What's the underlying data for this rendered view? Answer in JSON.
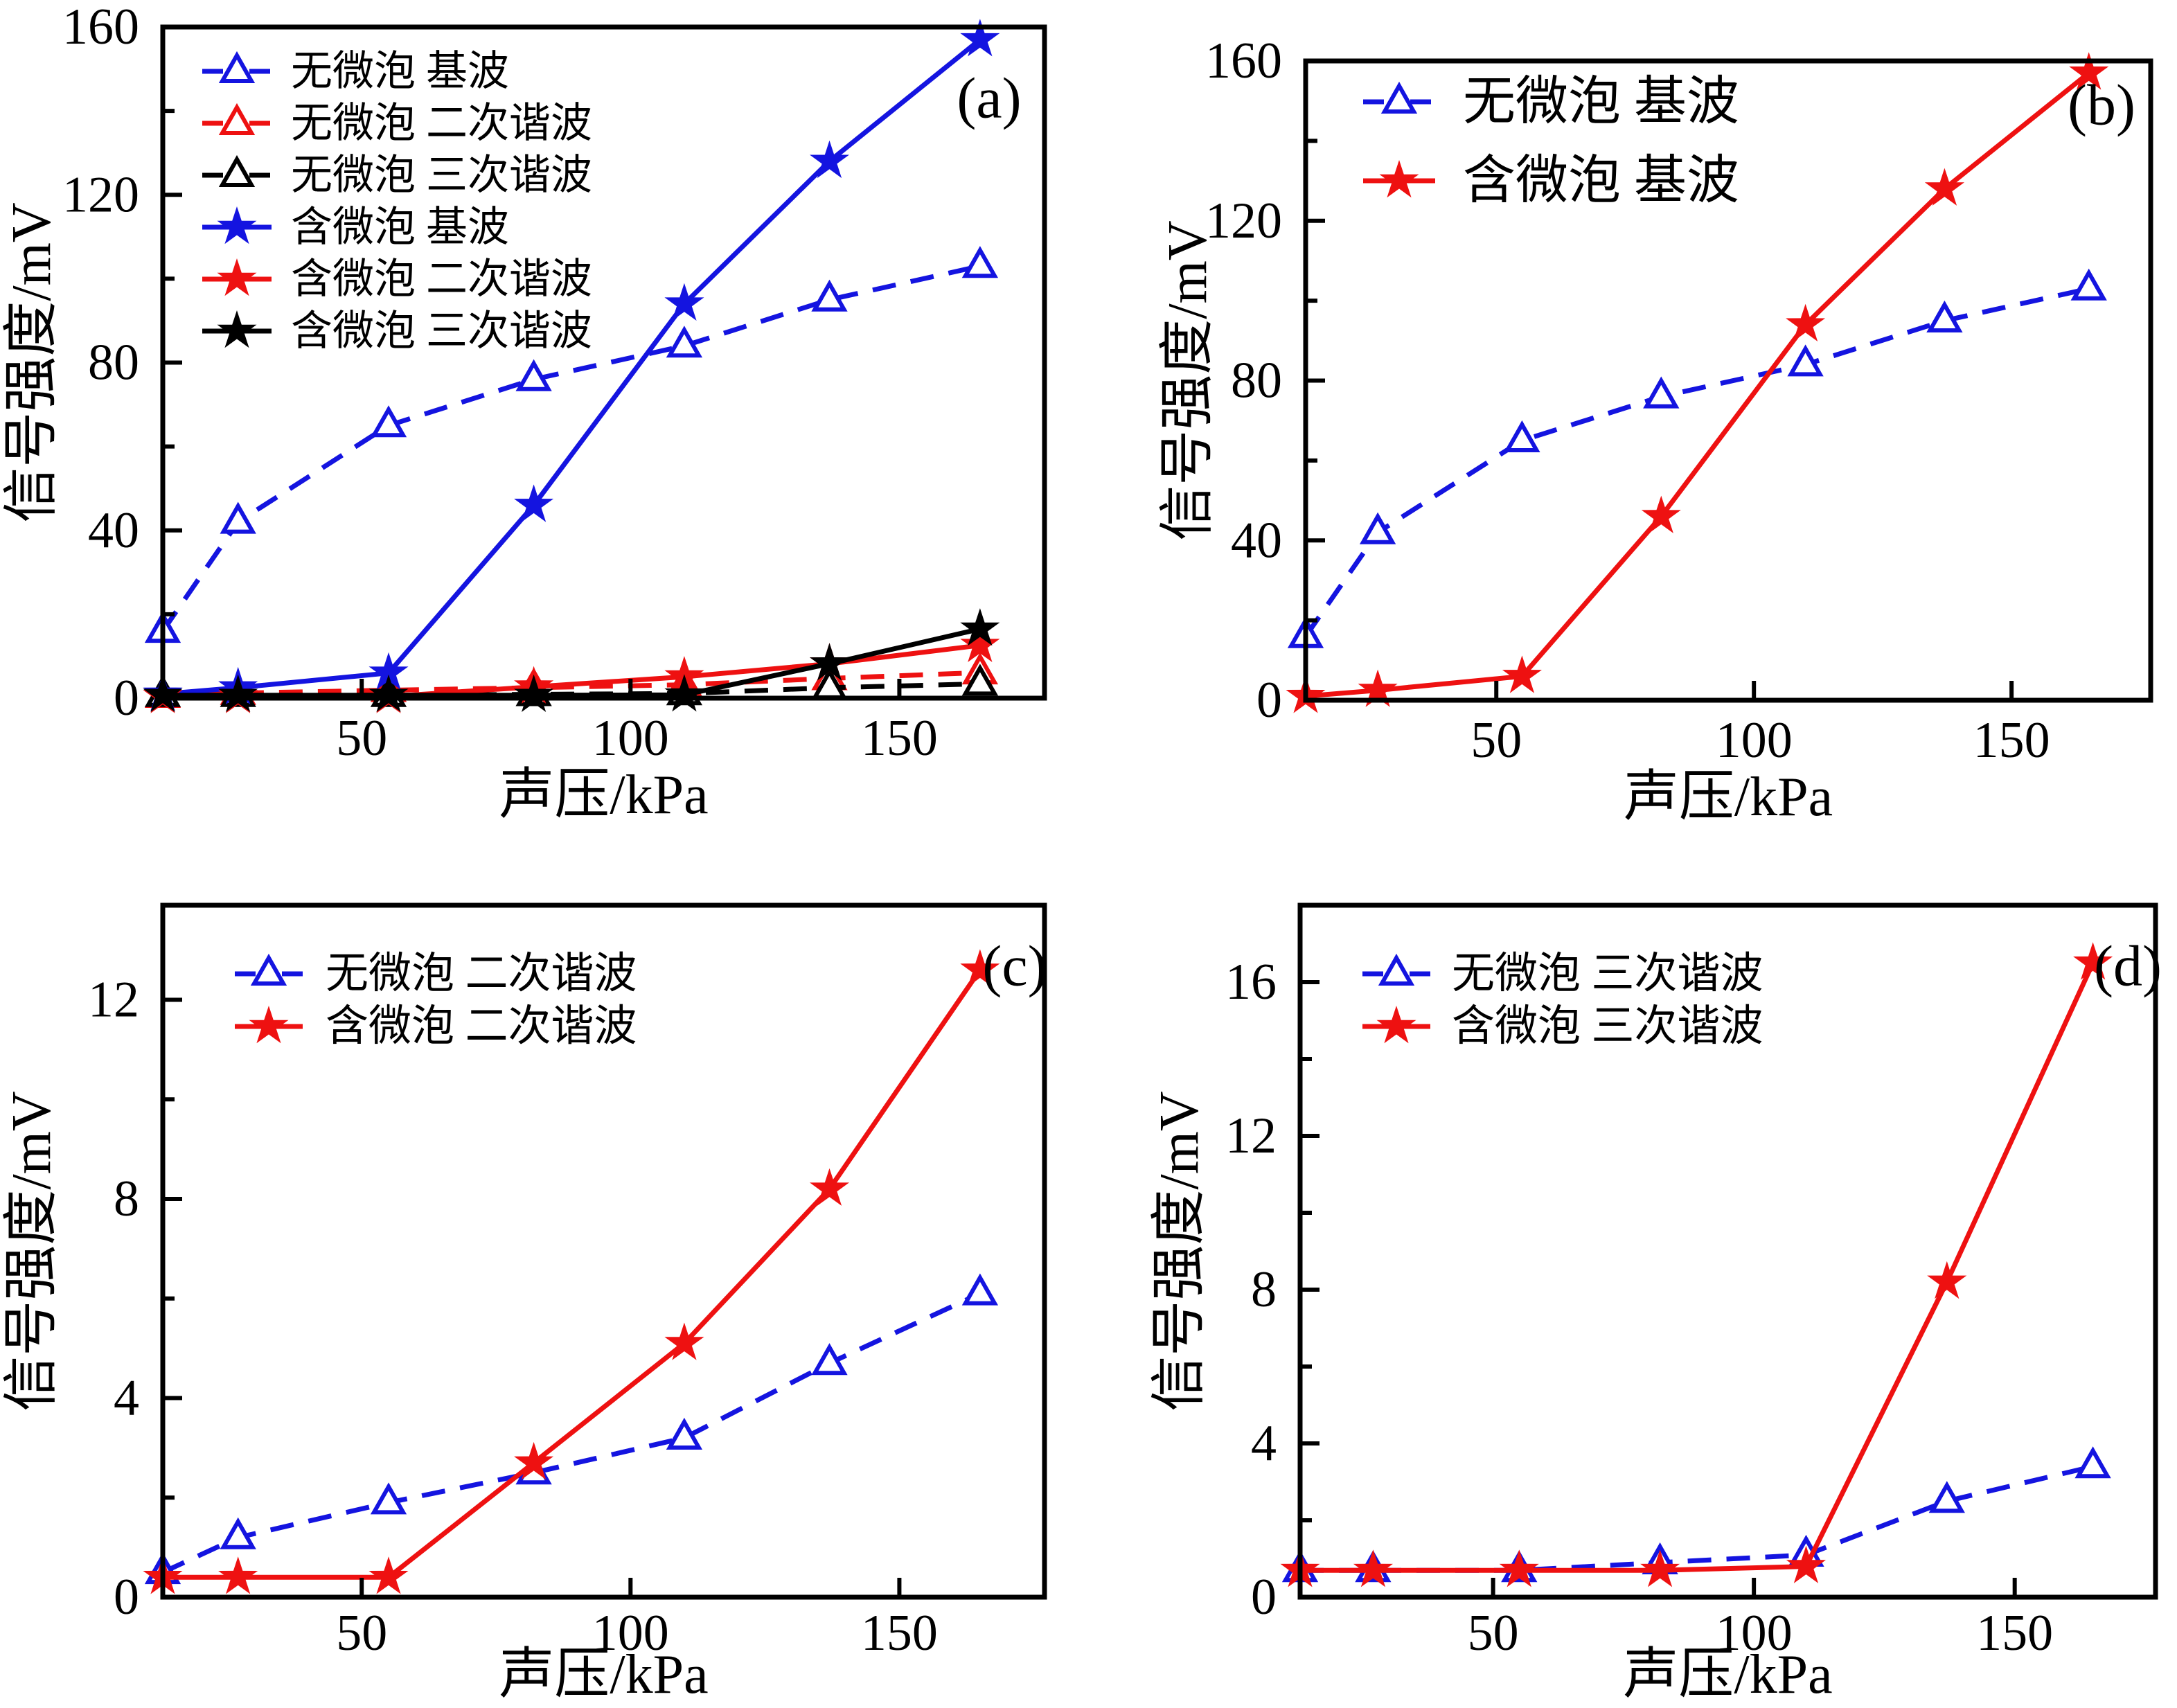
{
  "figure": {
    "background": "#ffffff",
    "description_colors": {
      "blue": "#1414E0",
      "red": "#EE1111",
      "black": "#000000"
    }
  },
  "chart_data": [
    {
      "id": "a",
      "type": "line",
      "panel_label": "(a)",
      "xlabel": "声压/kPa",
      "ylabel": "信号强度/mV",
      "x": [
        13,
        27,
        55,
        82,
        110,
        137,
        165
      ],
      "xlim": [
        13,
        177
      ],
      "xticks": [
        50,
        100,
        150
      ],
      "ylim": [
        0,
        160
      ],
      "yticks": [
        0,
        40,
        80,
        120,
        160
      ],
      "yticks_minor": [
        20,
        60,
        100,
        140
      ],
      "grid": false,
      "legend_position": "upper-left-inside",
      "series": [
        {
          "name": "无微泡 基波",
          "color": "#1414E0",
          "dash": true,
          "marker": "triangle-open",
          "values": [
            16,
            42,
            65,
            76,
            84,
            95,
            103
          ]
        },
        {
          "name": "无微泡 二次谐波",
          "color": "#EE1111",
          "dash": true,
          "marker": "triangle-open",
          "values": [
            0.5,
            1.2,
            1.9,
            2.5,
            3.2,
            4.7,
            6.1
          ]
        },
        {
          "name": "无微泡 三次谐波",
          "color": "#000000",
          "dash": true,
          "marker": "triangle-open",
          "values": [
            0.7,
            0.7,
            0.7,
            0.9,
            1.1,
            2.5,
            3.4
          ]
        },
        {
          "name": "含微泡 基波",
          "color": "#1414E0",
          "dash": false,
          "marker": "star-filled",
          "values": [
            1,
            2.5,
            6,
            46,
            94,
            128,
            157
          ]
        },
        {
          "name": "含微泡 二次谐波",
          "color": "#EE1111",
          "dash": false,
          "marker": "star-filled",
          "values": [
            0.4,
            0.4,
            0.4,
            2.7,
            5.1,
            8.2,
            12.6
          ]
        },
        {
          "name": "含微泡 三次谐波",
          "color": "#000000",
          "dash": false,
          "marker": "star-filled",
          "values": [
            0.7,
            0.7,
            0.7,
            0.7,
            0.8,
            8.2,
            16.5
          ]
        }
      ]
    },
    {
      "id": "b",
      "type": "line",
      "panel_label": "(b)",
      "xlabel": "声压/kPa",
      "ylabel": "信号强度/mV",
      "x": [
        13,
        27,
        55,
        82,
        110,
        137,
        165
      ],
      "xlim": [
        13,
        177
      ],
      "xticks": [
        50,
        100,
        150
      ],
      "ylim": [
        0,
        160
      ],
      "yticks": [
        0,
        40,
        80,
        120,
        160
      ],
      "yticks_minor": [
        20,
        60,
        100,
        140
      ],
      "grid": false,
      "legend_position": "upper-left-inside",
      "series": [
        {
          "name": "无微泡 基波",
          "color": "#1414E0",
          "dash": true,
          "marker": "triangle-open",
          "values": [
            16,
            42,
            65,
            76,
            84,
            95,
            103
          ]
        },
        {
          "name": "含微泡 基波",
          "color": "#EE1111",
          "dash": false,
          "marker": "star-filled",
          "values": [
            1,
            2.5,
            6,
            46,
            94,
            128,
            157
          ]
        }
      ]
    },
    {
      "id": "c",
      "type": "line",
      "panel_label": "(c)",
      "xlabel": "声压/kPa",
      "ylabel": "信号强度/mV",
      "x": [
        13,
        27,
        55,
        82,
        110,
        137,
        165
      ],
      "xlim": [
        13,
        177
      ],
      "xticks": [
        50,
        100,
        150
      ],
      "ylim": [
        0,
        13.9
      ],
      "yticks": [
        0,
        4,
        8,
        12
      ],
      "yticks_minor": [
        2,
        6,
        10
      ],
      "grid": false,
      "legend_position": "upper-left-inside",
      "series": [
        {
          "name": "无微泡 二次谐波",
          "color": "#1414E0",
          "dash": true,
          "marker": "triangle-open",
          "values": [
            0.5,
            1.2,
            1.9,
            2.5,
            3.2,
            4.7,
            6.1
          ]
        },
        {
          "name": "含微泡 二次谐波",
          "color": "#EE1111",
          "dash": false,
          "marker": "star-filled",
          "values": [
            0.4,
            0.4,
            0.4,
            2.7,
            5.1,
            8.2,
            12.6
          ]
        }
      ]
    },
    {
      "id": "d",
      "type": "line",
      "panel_label": "(d)",
      "xlabel": "声压/kPa",
      "ylabel": "信号强度/mV",
      "x": [
        13,
        27,
        55,
        82,
        110,
        137,
        165
      ],
      "xlim": [
        13,
        177
      ],
      "xticks": [
        50,
        100,
        150
      ],
      "ylim": [
        0,
        18
      ],
      "yticks": [
        0,
        4,
        8,
        12,
        16
      ],
      "yticks_minor": [
        2,
        6,
        10,
        14
      ],
      "grid": false,
      "legend_position": "upper-left-inside",
      "series": [
        {
          "name": "无微泡 三次谐波",
          "color": "#1414E0",
          "dash": true,
          "marker": "triangle-open",
          "values": [
            0.7,
            0.7,
            0.7,
            0.9,
            1.1,
            2.5,
            3.4
          ]
        },
        {
          "name": "含微泡 三次谐波",
          "color": "#EE1111",
          "dash": false,
          "marker": "star-filled",
          "values": [
            0.7,
            0.7,
            0.7,
            0.7,
            0.8,
            8.2,
            16.5
          ]
        }
      ]
    }
  ]
}
